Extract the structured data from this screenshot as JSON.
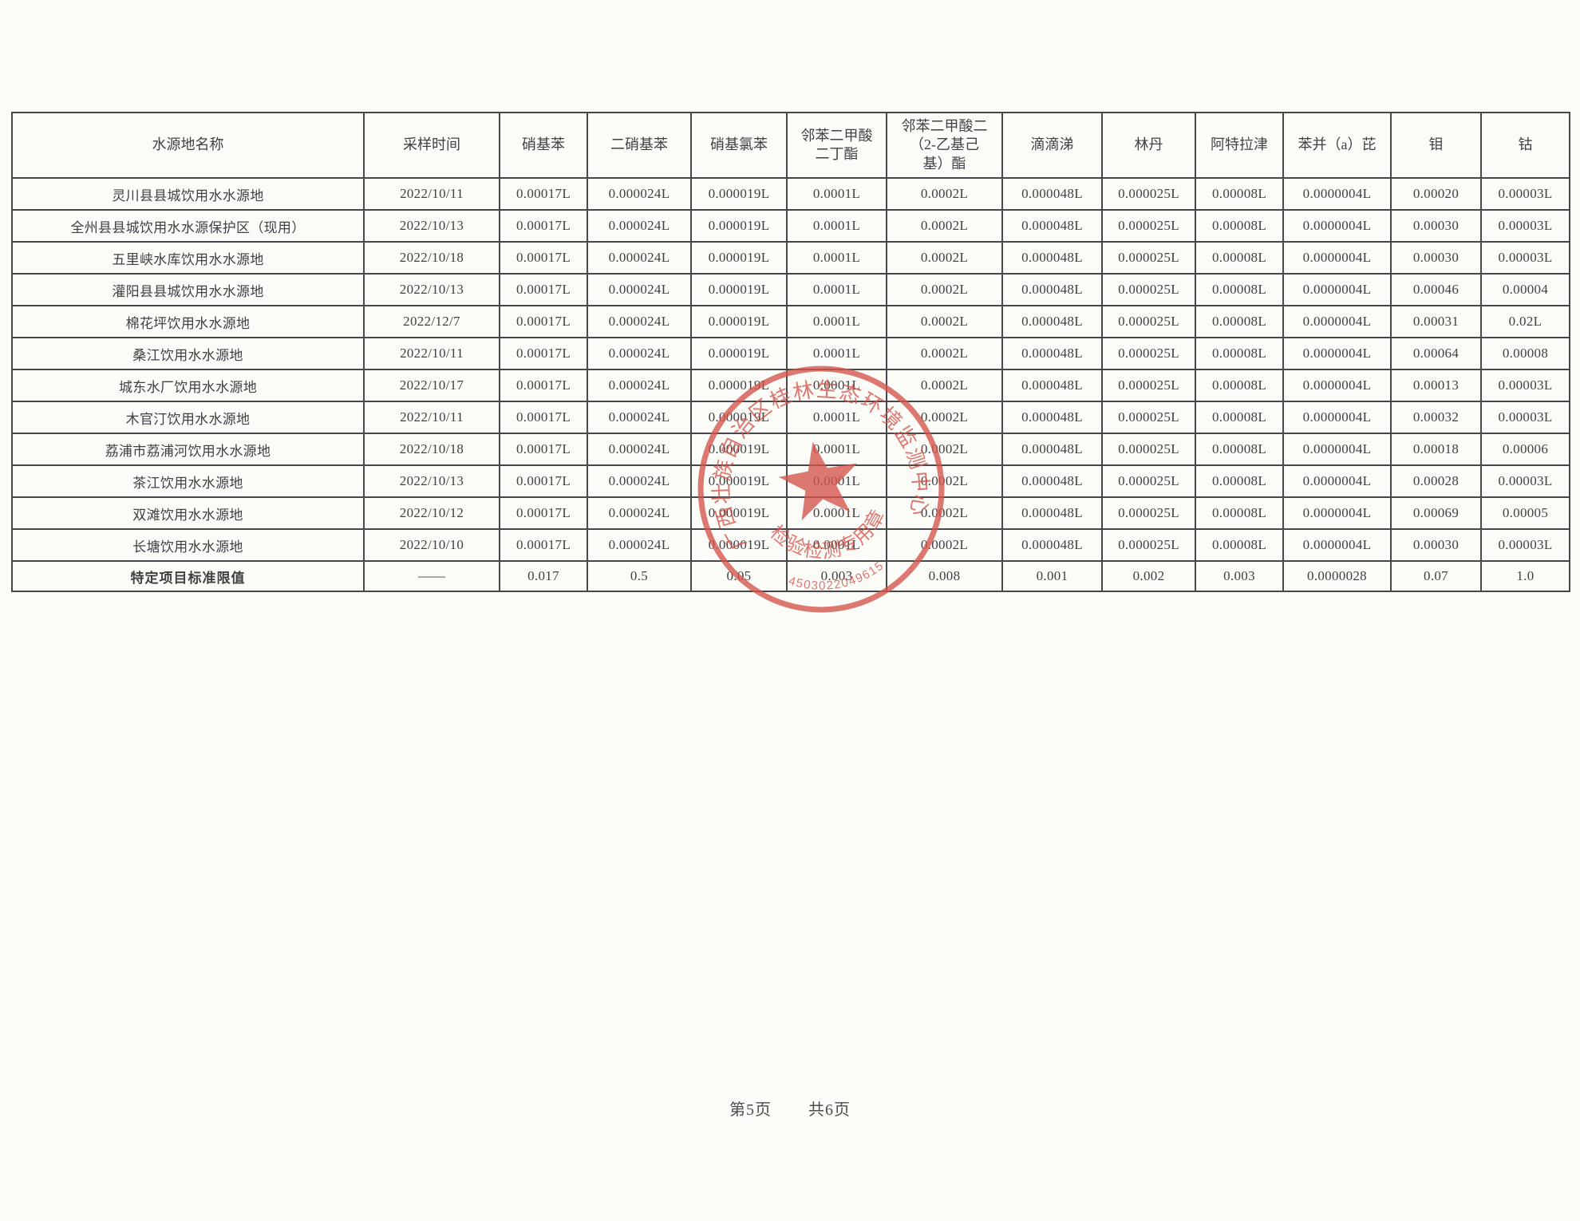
{
  "page": {
    "footer_page": "第5页",
    "footer_total": "共6页"
  },
  "table": {
    "columns": [
      "水源地名称",
      "采样时间",
      "硝基苯",
      "二硝基苯",
      "硝基氯苯",
      "邻苯二甲酸\n二丁酯",
      "邻苯二甲酸二\n（2-乙基己\n基）酯",
      "滴滴涕",
      "林丹",
      "阿特拉津",
      "苯并（a）芘",
      "钼",
      "钴"
    ],
    "rows": [
      {
        "name": "灵川县县城饮用水水源地",
        "date": "2022/10/11",
        "values": [
          "0.00017L",
          "0.000024L",
          "0.000019L",
          "0.0001L",
          "0.0002L",
          "0.000048L",
          "0.000025L",
          "0.00008L",
          "0.0000004L",
          "0.00020",
          "0.00003L"
        ]
      },
      {
        "name": "全州县县城饮用水水源保护区（现用）",
        "date": "2022/10/13",
        "values": [
          "0.00017L",
          "0.000024L",
          "0.000019L",
          "0.0001L",
          "0.0002L",
          "0.000048L",
          "0.000025L",
          "0.00008L",
          "0.0000004L",
          "0.00030",
          "0.00003L"
        ]
      },
      {
        "name": "五里峡水库饮用水水源地",
        "date": "2022/10/18",
        "values": [
          "0.00017L",
          "0.000024L",
          "0.000019L",
          "0.0001L",
          "0.0002L",
          "0.000048L",
          "0.000025L",
          "0.00008L",
          "0.0000004L",
          "0.00030",
          "0.00003L"
        ]
      },
      {
        "name": "灌阳县县城饮用水水源地",
        "date": "2022/10/13",
        "values": [
          "0.00017L",
          "0.000024L",
          "0.000019L",
          "0.0001L",
          "0.0002L",
          "0.000048L",
          "0.000025L",
          "0.00008L",
          "0.0000004L",
          "0.00046",
          "0.00004"
        ]
      },
      {
        "name": "棉花坪饮用水水源地",
        "date": "2022/12/7",
        "values": [
          "0.00017L",
          "0.000024L",
          "0.000019L",
          "0.0001L",
          "0.0002L",
          "0.000048L",
          "0.000025L",
          "0.00008L",
          "0.0000004L",
          "0.00031",
          "0.02L"
        ]
      },
      {
        "name": "桑江饮用水水源地",
        "date": "2022/10/11",
        "values": [
          "0.00017L",
          "0.000024L",
          "0.000019L",
          "0.0001L",
          "0.0002L",
          "0.000048L",
          "0.000025L",
          "0.00008L",
          "0.0000004L",
          "0.00064",
          "0.00008"
        ]
      },
      {
        "name": "城东水厂饮用水水源地",
        "date": "2022/10/17",
        "values": [
          "0.00017L",
          "0.000024L",
          "0.000019L",
          "0.0001L",
          "0.0002L",
          "0.000048L",
          "0.000025L",
          "0.00008L",
          "0.0000004L",
          "0.00013",
          "0.00003L"
        ]
      },
      {
        "name": "木官汀饮用水水源地",
        "date": "2022/10/11",
        "values": [
          "0.00017L",
          "0.000024L",
          "0.000019L",
          "0.0001L",
          "0.0002L",
          "0.000048L",
          "0.000025L",
          "0.00008L",
          "0.0000004L",
          "0.00032",
          "0.00003L"
        ]
      },
      {
        "name": "荔浦市荔浦河饮用水水源地",
        "date": "2022/10/18",
        "values": [
          "0.00017L",
          "0.000024L",
          "0.000019L",
          "0.0001L",
          "0.0002L",
          "0.000048L",
          "0.000025L",
          "0.00008L",
          "0.0000004L",
          "0.00018",
          "0.00006"
        ]
      },
      {
        "name": "茶江饮用水水源地",
        "date": "2022/10/13",
        "values": [
          "0.00017L",
          "0.000024L",
          "0.000019L",
          "0.0001L",
          "0.0002L",
          "0.000048L",
          "0.000025L",
          "0.00008L",
          "0.0000004L",
          "0.00028",
          "0.00003L"
        ]
      },
      {
        "name": "双滩饮用水水源地",
        "date": "2022/10/12",
        "values": [
          "0.00017L",
          "0.000024L",
          "0.000019L",
          "0.0001L",
          "0.0002L",
          "0.000048L",
          "0.000025L",
          "0.00008L",
          "0.0000004L",
          "0.00069",
          "0.00005"
        ]
      },
      {
        "name": "长塘饮用水水源地",
        "date": "2022/10/10",
        "values": [
          "0.00017L",
          "0.000024L",
          "0.000019L",
          "0.0001L",
          "0.0002L",
          "0.000048L",
          "0.000025L",
          "0.00008L",
          "0.0000004L",
          "0.00030",
          "0.00003L"
        ]
      }
    ],
    "limit_row": {
      "name": "特定项目标准限值",
      "date": "——",
      "values": [
        "0.017",
        "0.5",
        "0.05",
        "0.003",
        "0.008",
        "0.001",
        "0.002",
        "0.003",
        "0.0000028",
        "0.07",
        "1.0"
      ]
    }
  },
  "stamp": {
    "org_name": "广西壮族自治区桂林生态环境监测中心",
    "seal_label": "检验检测专用章",
    "number": "4503022049615",
    "color": "#d5544b"
  }
}
